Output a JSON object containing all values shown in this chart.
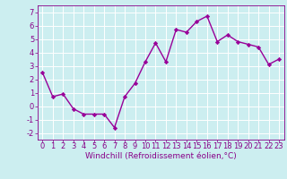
{
  "x": [
    0,
    1,
    2,
    3,
    4,
    5,
    6,
    7,
    8,
    9,
    10,
    11,
    12,
    13,
    14,
    15,
    16,
    17,
    18,
    19,
    20,
    21,
    22,
    23
  ],
  "y": [
    2.5,
    0.7,
    0.9,
    -0.2,
    -0.6,
    -0.6,
    -0.6,
    -1.6,
    0.7,
    1.7,
    3.3,
    4.7,
    3.3,
    5.7,
    5.5,
    6.3,
    6.7,
    4.8,
    5.3,
    4.8,
    4.6,
    4.4,
    3.1,
    3.5
  ],
  "line_color": "#990099",
  "marker": "D",
  "marker_size": 2.2,
  "background_color": "#cceef0",
  "grid_color": "#b0d8dc",
  "xlabel": "Windchill (Refroidissement éolien,°C)",
  "xlabel_color": "#880088",
  "tick_color": "#880088",
  "xlim": [
    -0.5,
    23.5
  ],
  "ylim": [
    -2.5,
    7.5
  ],
  "yticks": [
    -2,
    -1,
    0,
    1,
    2,
    3,
    4,
    5,
    6,
    7
  ],
  "xticks": [
    0,
    1,
    2,
    3,
    4,
    5,
    6,
    7,
    8,
    9,
    10,
    11,
    12,
    13,
    14,
    15,
    16,
    17,
    18,
    19,
    20,
    21,
    22,
    23
  ],
  "xlabel_fontsize": 6.5,
  "tick_fontsize": 6.0,
  "line_width": 1.0
}
